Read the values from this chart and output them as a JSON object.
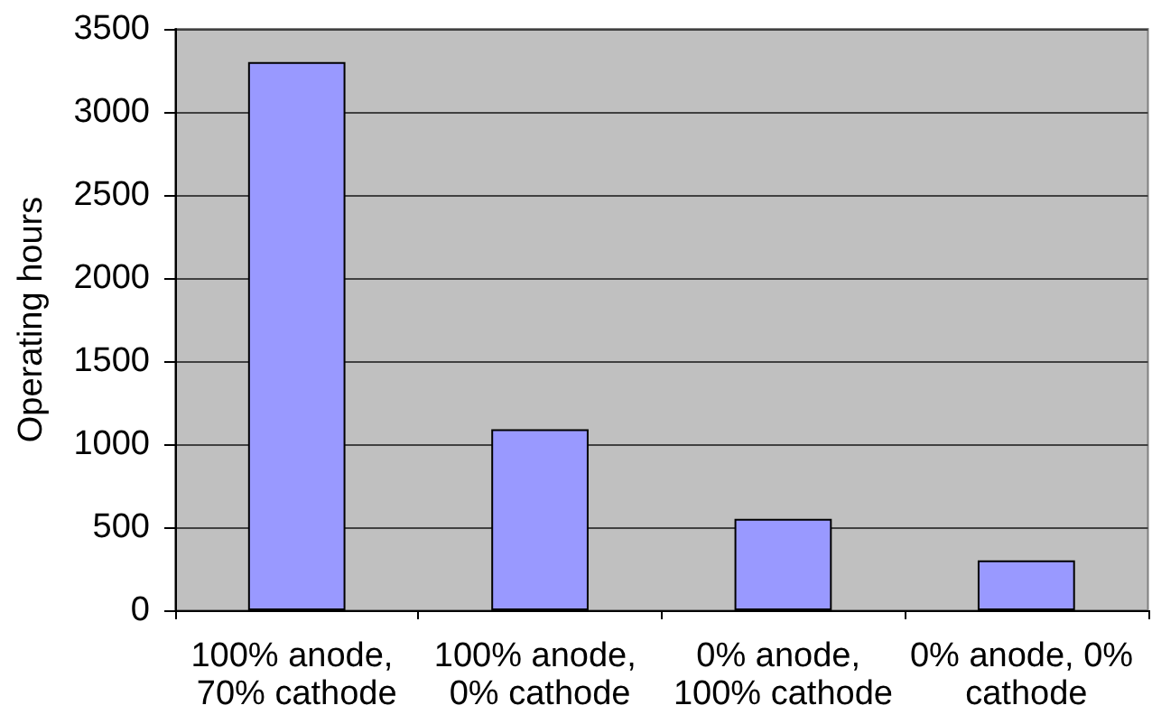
{
  "chart_data": {
    "type": "bar",
    "ylabel": "Operating hours",
    "categories": [
      "100% anode, 70% cathode",
      "100% anode, 0% cathode",
      "0% anode, 100% cathode",
      "0% anode, 0% cathode"
    ],
    "values": [
      3300,
      1090,
      550,
      300
    ],
    "color": "#9999ff",
    "ylim": [
      0,
      3500
    ],
    "yticks": [
      0,
      500,
      1000,
      1500,
      2000,
      2500,
      3000,
      3500
    ],
    "grid": "y"
  }
}
